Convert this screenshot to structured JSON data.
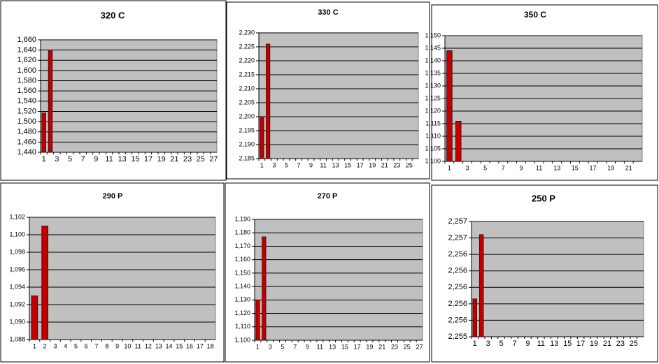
{
  "chart_data": [
    {
      "type": "bar",
      "title": "320 C",
      "color": "#c00000",
      "grid": true,
      "categories": [
        1,
        null,
        3,
        null,
        5,
        null,
        7,
        null,
        9,
        null,
        11,
        null,
        13,
        null,
        15,
        null,
        17,
        null,
        19,
        null,
        21,
        null,
        23,
        null,
        25,
        null,
        27
      ],
      "values": [
        1517,
        1640,
        null,
        null,
        null,
        null,
        null,
        null,
        null,
        null,
        null,
        null,
        null,
        null,
        null,
        null,
        null,
        null,
        null,
        null,
        null,
        null,
        null,
        null,
        null,
        null,
        null
      ],
      "ylim": [
        1440,
        1660
      ],
      "yticks": [
        {
          "value": 1440,
          "label": "1,440"
        },
        {
          "value": 1460,
          "label": "1,460"
        },
        {
          "value": 1480,
          "label": "1,480"
        },
        {
          "value": 1500,
          "label": "1,500"
        },
        {
          "value": 1520,
          "label": "1,520"
        },
        {
          "value": 1540,
          "label": "1,540"
        },
        {
          "value": 1560,
          "label": "1,560"
        },
        {
          "value": 1580,
          "label": "1,580"
        },
        {
          "value": 1600,
          "label": "1,600"
        },
        {
          "value": 1620,
          "label": "1,620"
        },
        {
          "value": 1640,
          "label": "1,640"
        },
        {
          "value": 1660,
          "label": "1,660"
        }
      ]
    },
    {
      "type": "bar",
      "title": "330 C",
      "color": "#c00000",
      "grid": true,
      "categories": [
        1,
        null,
        3,
        null,
        5,
        null,
        7,
        null,
        9,
        null,
        11,
        null,
        13,
        null,
        15,
        null,
        17,
        null,
        19,
        null,
        21,
        null,
        23,
        null,
        25,
        null
      ],
      "values": [
        2200,
        2226,
        null,
        null,
        null,
        null,
        null,
        null,
        null,
        null,
        null,
        null,
        null,
        null,
        null,
        null,
        null,
        null,
        null,
        null,
        null,
        null,
        null,
        null,
        null,
        null
      ],
      "ylim": [
        2185,
        2230
      ],
      "yticks": [
        {
          "value": 2185,
          "label": "2,185"
        },
        {
          "value": 2190,
          "label": "2,190"
        },
        {
          "value": 2195,
          "label": "2,195"
        },
        {
          "value": 2200,
          "label": "2,200"
        },
        {
          "value": 2205,
          "label": "2,205"
        },
        {
          "value": 2210,
          "label": "2,210"
        },
        {
          "value": 2215,
          "label": "2,215"
        },
        {
          "value": 2220,
          "label": "2,220"
        },
        {
          "value": 2225,
          "label": "2,225"
        },
        {
          "value": 2230,
          "label": "2,230"
        }
      ]
    },
    {
      "type": "bar",
      "title": "350 C",
      "color": "#c00000",
      "grid": true,
      "categories": [
        1,
        null,
        3,
        null,
        5,
        null,
        7,
        null,
        9,
        null,
        11,
        null,
        13,
        null,
        15,
        null,
        17,
        null,
        19,
        null,
        21,
        null
      ],
      "values": [
        1144,
        1116,
        null,
        null,
        null,
        null,
        null,
        null,
        null,
        null,
        null,
        null,
        null,
        null,
        null,
        null,
        null,
        null,
        null,
        null,
        null,
        null
      ],
      "ylim": [
        1100,
        1150
      ],
      "yticks": [
        {
          "value": 1100,
          "label": "1,100"
        },
        {
          "value": 1105,
          "label": "1,105"
        },
        {
          "value": 1110,
          "label": "1,110"
        },
        {
          "value": 1115,
          "label": "1,115"
        },
        {
          "value": 1120,
          "label": "1,120"
        },
        {
          "value": 1125,
          "label": "1,125"
        },
        {
          "value": 1130,
          "label": "1,130"
        },
        {
          "value": 1135,
          "label": "1,135"
        },
        {
          "value": 1140,
          "label": "1,140"
        },
        {
          "value": 1145,
          "label": "1,145"
        },
        {
          "value": 1150,
          "label": "1,150"
        }
      ]
    },
    {
      "type": "bar",
      "title": "290 P",
      "color": "#c00000",
      "grid": true,
      "categories": [
        1,
        2,
        3,
        4,
        5,
        6,
        7,
        8,
        9,
        10,
        11,
        12,
        13,
        14,
        15,
        16,
        17,
        18
      ],
      "values": [
        1093,
        1101,
        null,
        null,
        null,
        null,
        null,
        null,
        null,
        null,
        null,
        null,
        null,
        null,
        null,
        null,
        null,
        null
      ],
      "ylim": [
        1088,
        1102
      ],
      "yticks": [
        {
          "value": 1088,
          "label": "1,088"
        },
        {
          "value": 1090,
          "label": "1,090"
        },
        {
          "value": 1092,
          "label": "1,092"
        },
        {
          "value": 1094,
          "label": "1,094"
        },
        {
          "value": 1096,
          "label": "1,096"
        },
        {
          "value": 1098,
          "label": "1,098"
        },
        {
          "value": 1100,
          "label": "1,100"
        },
        {
          "value": 1102,
          "label": "1,102"
        }
      ]
    },
    {
      "type": "bar",
      "title": "270 P",
      "color": "#c00000",
      "grid": true,
      "categories": [
        1,
        null,
        3,
        null,
        5,
        null,
        7,
        null,
        9,
        null,
        11,
        null,
        13,
        null,
        15,
        null,
        17,
        null,
        19,
        null,
        21,
        null,
        23,
        null,
        25,
        null,
        27
      ],
      "values": [
        1130,
        1177,
        null,
        null,
        null,
        null,
        null,
        null,
        null,
        null,
        null,
        null,
        null,
        null,
        null,
        null,
        null,
        null,
        null,
        null,
        null,
        null,
        null,
        null,
        null,
        null,
        null
      ],
      "ylim": [
        1100,
        1190
      ],
      "yticks": [
        {
          "value": 1100,
          "label": "1,100"
        },
        {
          "value": 1110,
          "label": "1,110"
        },
        {
          "value": 1120,
          "label": "1,120"
        },
        {
          "value": 1130,
          "label": "1,130"
        },
        {
          "value": 1140,
          "label": "1,140"
        },
        {
          "value": 1150,
          "label": "1,150"
        },
        {
          "value": 1160,
          "label": "1,160"
        },
        {
          "value": 1170,
          "label": "1,170"
        },
        {
          "value": 1180,
          "label": "1,180"
        },
        {
          "value": 1190,
          "label": "1,190"
        }
      ]
    },
    {
      "type": "bar",
      "title": "250 P",
      "color": "#c00000",
      "grid": true,
      "categories": [
        1,
        null,
        3,
        null,
        5,
        null,
        7,
        null,
        9,
        null,
        11,
        null,
        13,
        null,
        15,
        null,
        17,
        null,
        19,
        null,
        21,
        null,
        23,
        null,
        25,
        null
      ],
      "values": [
        2255.86,
        2256.64,
        null,
        null,
        null,
        null,
        null,
        null,
        null,
        null,
        null,
        null,
        null,
        null,
        null,
        null,
        null,
        null,
        null,
        null,
        null,
        null,
        null,
        null,
        null,
        null
      ],
      "ylim": [
        2255.4,
        2256.8
      ],
      "yticks": [
        {
          "value": 2255.4,
          "label": "2,255"
        },
        {
          "value": 2255.6,
          "label": "2,256"
        },
        {
          "value": 2255.8,
          "label": "2,256"
        },
        {
          "value": 2256.0,
          "label": "2,256"
        },
        {
          "value": 2256.2,
          "label": "2,256"
        },
        {
          "value": 2256.4,
          "label": "2,256"
        },
        {
          "value": 2256.6,
          "label": "2,257"
        },
        {
          "value": 2256.8,
          "label": "2,257"
        }
      ]
    }
  ]
}
